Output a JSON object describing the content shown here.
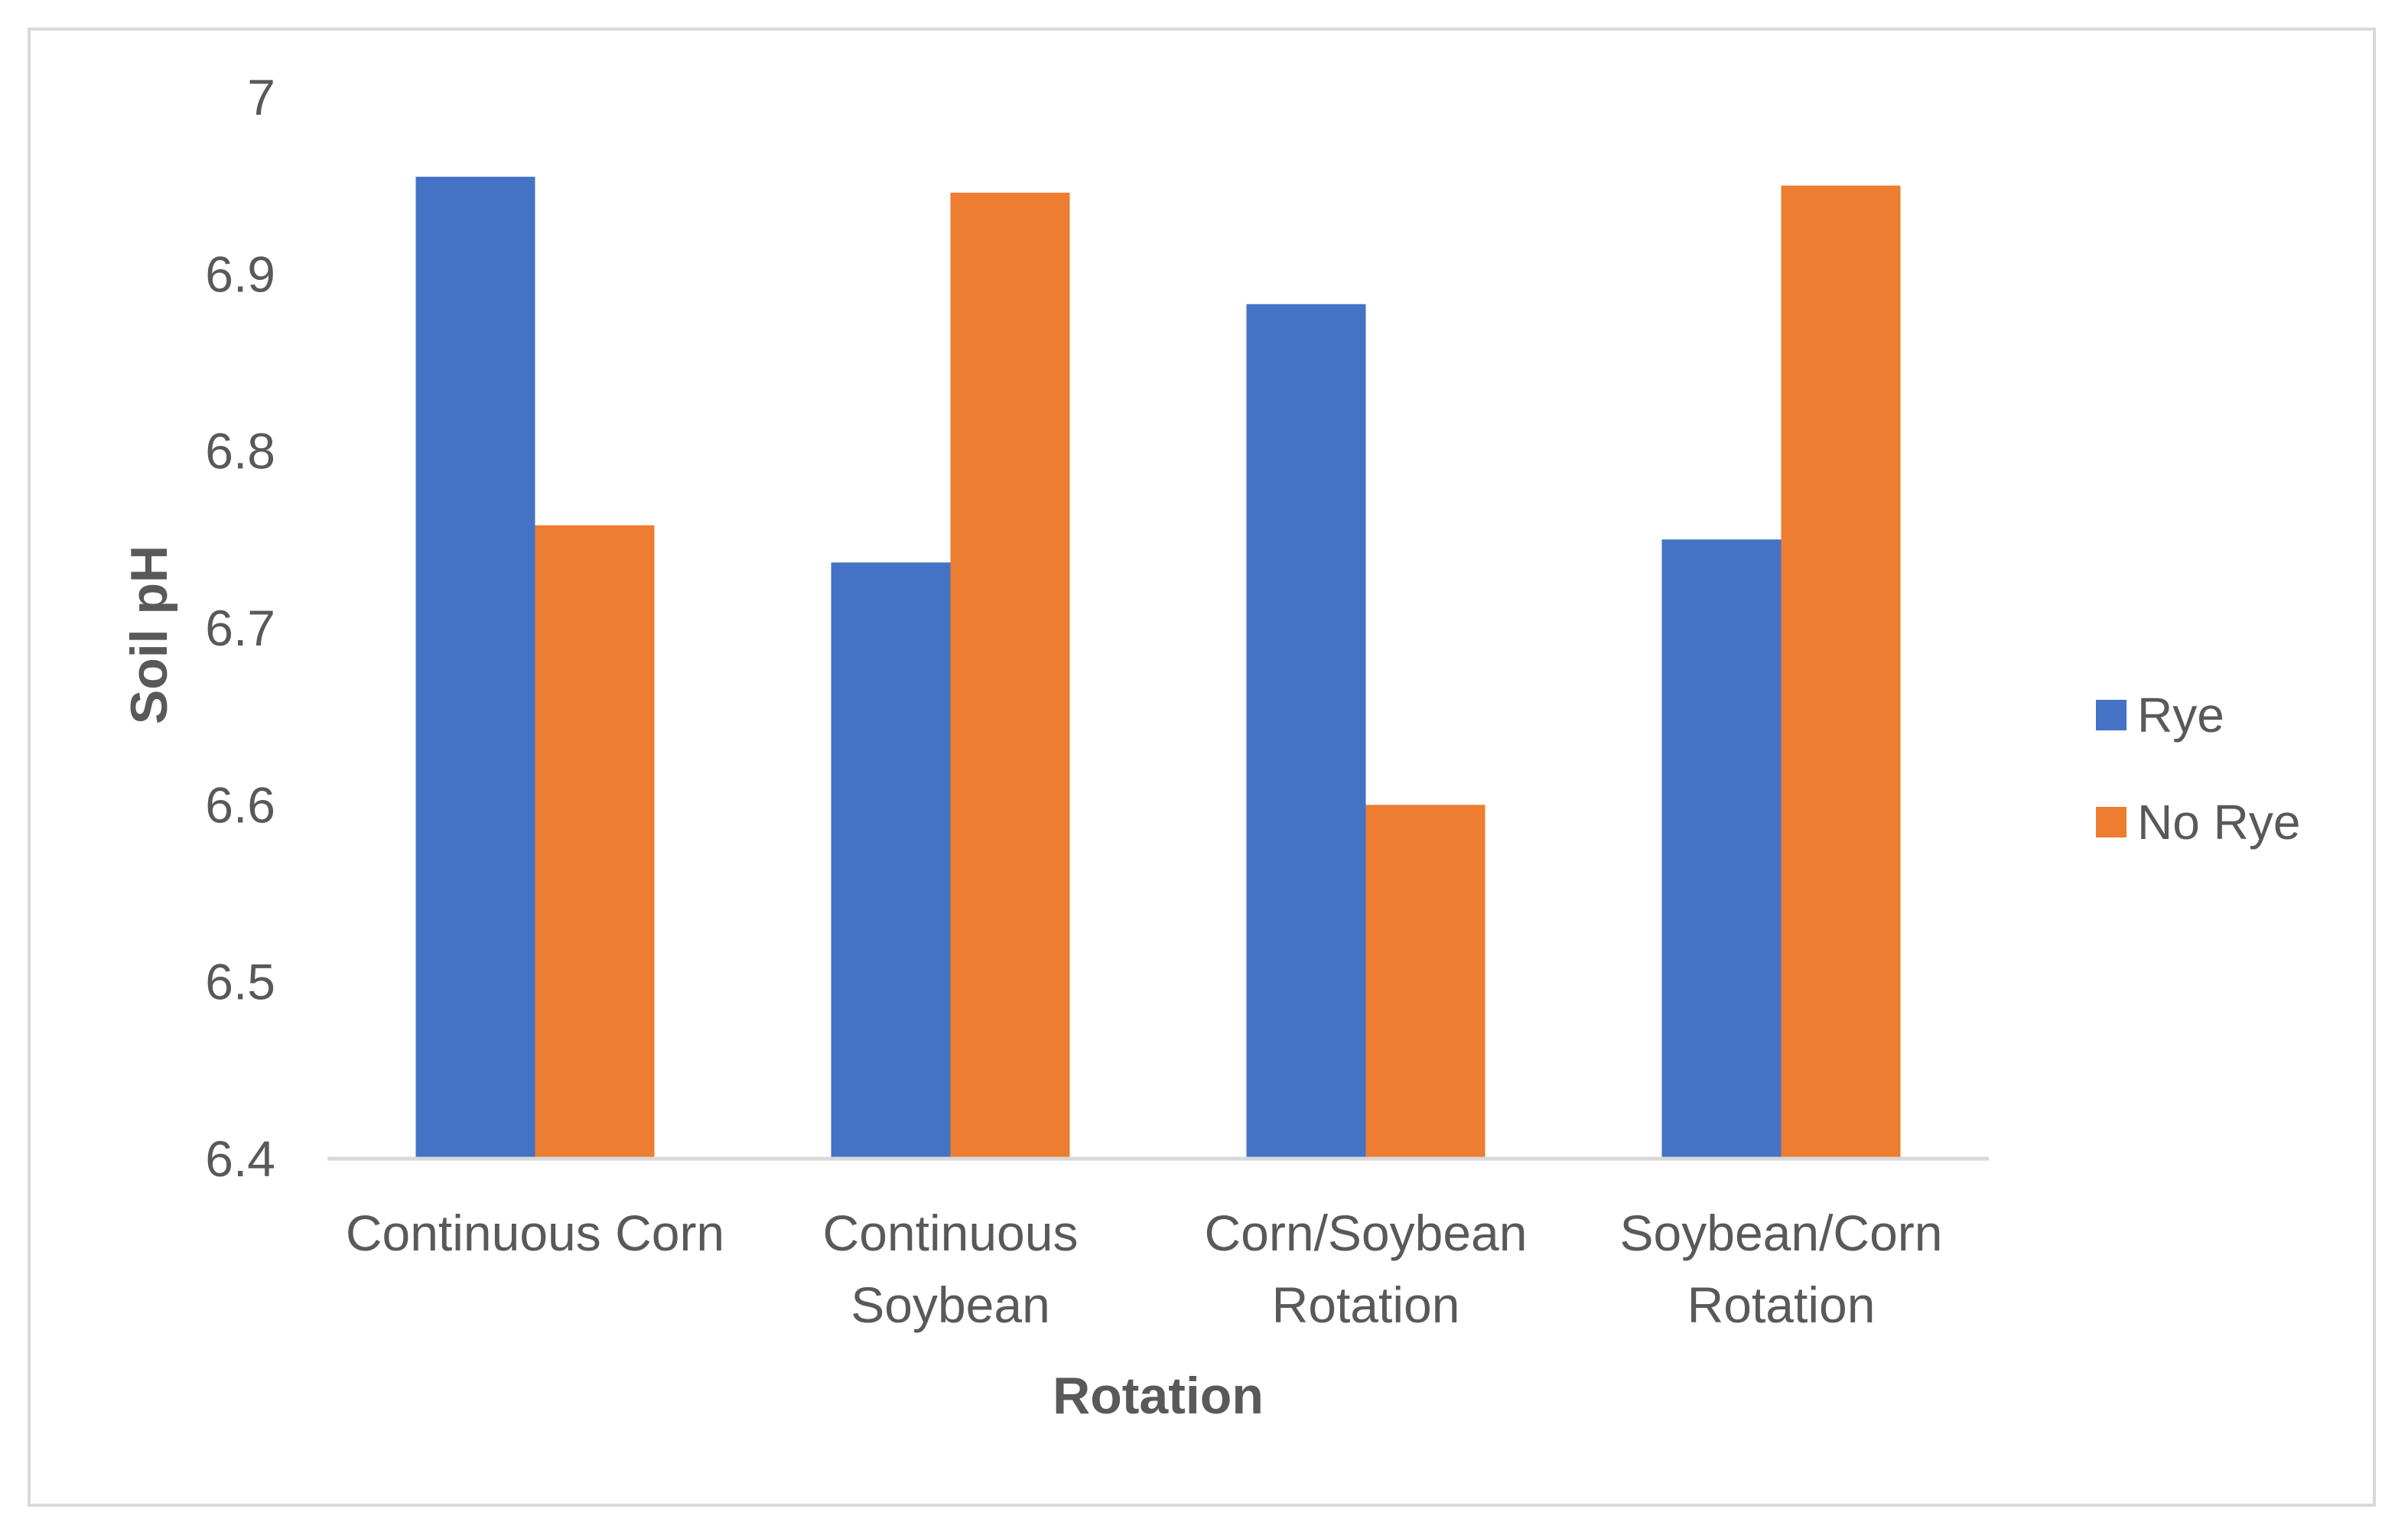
{
  "chart_data": {
    "type": "bar",
    "title": "",
    "xlabel": "Rotation",
    "ylabel": "Soil pH",
    "ylim": [
      6.4,
      7.0
    ],
    "yticks": [
      "6.4",
      "6.5",
      "6.6",
      "6.7",
      "6.8",
      "6.9",
      "7"
    ],
    "categories": [
      [
        "Continuous Corn"
      ],
      [
        "Continuous",
        "Soybean"
      ],
      [
        "Corn/Soybean",
        "Rotation"
      ],
      [
        "Soybean/Corn",
        "Rotation"
      ]
    ],
    "series": [
      {
        "name": "Rye",
        "color": "#4472c4",
        "values": [
          6.955,
          6.737,
          6.883,
          6.75
        ]
      },
      {
        "name": "No Rye",
        "color": "#ed7d31",
        "values": [
          6.758,
          6.946,
          6.6,
          6.95
        ]
      }
    ],
    "grid": false,
    "legend_position": "right"
  }
}
